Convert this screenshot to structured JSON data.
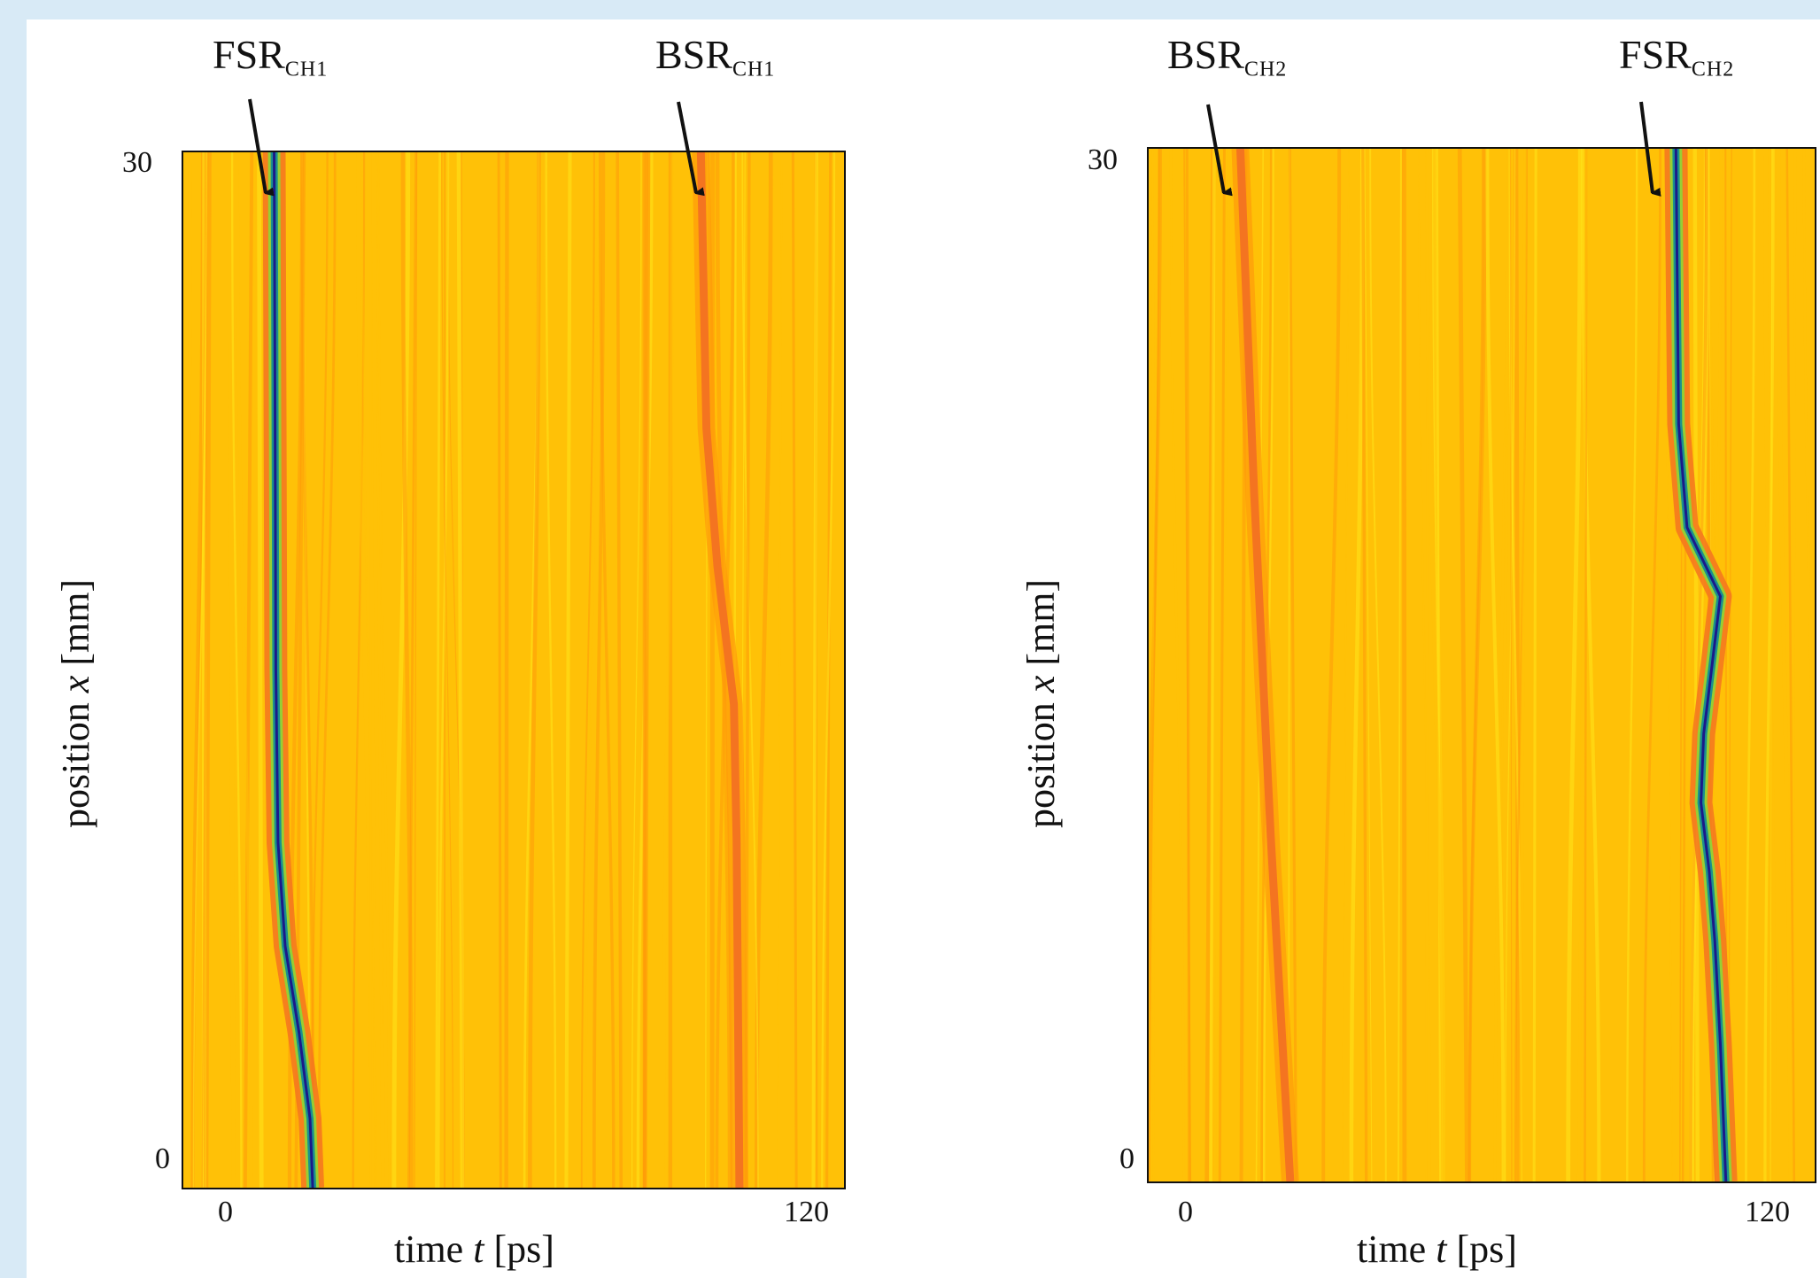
{
  "figure": {
    "background": "#d8eaf6"
  },
  "chart_data": [
    {
      "type": "heatmap",
      "xlabel_prefix": "time ",
      "xlabel_var": "t",
      "xlabel_unit": " [ps]",
      "ylabel_prefix": "position ",
      "ylabel_var": "x",
      "ylabel_unit": " [mm]",
      "x_range": [
        0,
        120
      ],
      "y_range": [
        0,
        30
      ],
      "x_ticks": [
        "0",
        "120"
      ],
      "y_ticks": [
        "30",
        "0"
      ],
      "grid": false,
      "colormap": [
        "#1a1a8a",
        "#1b8f8f",
        "#7fe23a",
        "#ffe61a",
        "#ffc107",
        "#ff9a0a",
        "#f47420"
      ],
      "features": [
        {
          "label": "FSR",
          "sub": "CH1",
          "color": "blue-green",
          "t_vs_x": [
            [
              30,
              16.5
            ],
            [
              25,
              16.6
            ],
            [
              20,
              16.7
            ],
            [
              15,
              16.8
            ],
            [
              10,
              17.2
            ],
            [
              7,
              18.5
            ],
            [
              4.5,
              21.0
            ],
            [
              2,
              23.0
            ],
            [
              0,
              23.5
            ]
          ]
        },
        {
          "label": "BSR",
          "sub": "CH1",
          "color": "orange-red",
          "t_vs_x": [
            [
              30,
              94
            ],
            [
              22,
              95
            ],
            [
              18,
              97
            ],
            [
              14,
              100
            ],
            [
              10,
              100.5
            ],
            [
              0,
              101
            ]
          ]
        }
      ]
    },
    {
      "type": "heatmap",
      "xlabel_prefix": "time ",
      "xlabel_var": "t",
      "xlabel_unit": " [ps]",
      "ylabel_prefix": "position ",
      "ylabel_var": "x",
      "ylabel_unit": " [mm]",
      "x_range": [
        0,
        120
      ],
      "y_range": [
        0,
        30
      ],
      "x_ticks": [
        "0",
        "120"
      ],
      "y_ticks": [
        "30",
        "0"
      ],
      "grid": false,
      "colormap": [
        "#1a1a8a",
        "#1b8f8f",
        "#7fe23a",
        "#ffe61a",
        "#ffc107",
        "#ff9a0a",
        "#f47420"
      ],
      "features": [
        {
          "label": "BSR",
          "sub": "CH2",
          "color": "orange-red",
          "t_vs_x": [
            [
              30,
              16.5
            ],
            [
              20,
              19
            ],
            [
              10,
              22
            ],
            [
              0,
              25.5
            ]
          ]
        },
        {
          "label": "FSR",
          "sub": "CH2",
          "color": "blue-green",
          "t_vs_x": [
            [
              30,
              95
            ],
            [
              22,
              95.5
            ],
            [
              19,
              97
            ],
            [
              17,
              103
            ],
            [
              15,
              101.5
            ],
            [
              13,
              100
            ],
            [
              11,
              99.5
            ],
            [
              9,
              101
            ],
            [
              7,
              102
            ],
            [
              4,
              103
            ],
            [
              0,
              104
            ]
          ]
        }
      ]
    }
  ]
}
